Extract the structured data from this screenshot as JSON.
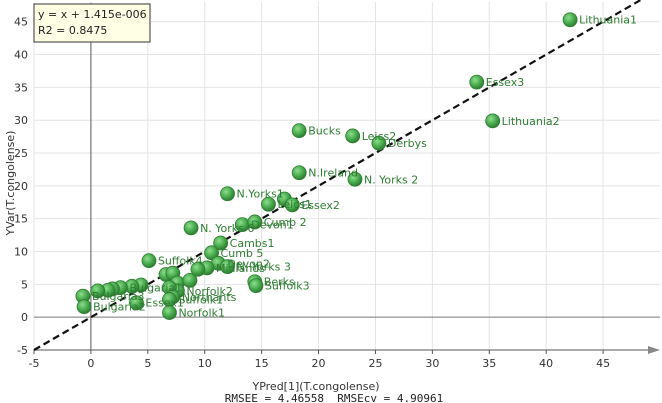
{
  "chart_data": {
    "type": "scatter",
    "xlabel": "YPred[1](T.congolense)",
    "ylabel": "YVar(T.congolense)",
    "xlim": [
      -5,
      50
    ],
    "ylim": [
      -5,
      48
    ],
    "x_ticks": [
      -5,
      0,
      5,
      10,
      15,
      20,
      25,
      30,
      35,
      40,
      45
    ],
    "y_ticks": [
      -5,
      0,
      5,
      10,
      15,
      20,
      25,
      30,
      35,
      40,
      45
    ],
    "grid": true,
    "fit_line": {
      "slope": 1,
      "intercept": 1.415e-06,
      "style": "dashed"
    },
    "equation": {
      "line1": "y = x + 1.415e-006",
      "line2": "R2 = 0.8475"
    },
    "stats_text": "RMSEE = 4.46558  RMSEcv = 4.90961",
    "marker_color": "#4caf50",
    "points": [
      {
        "x": 42.1,
        "y": 45.3,
        "label": "Lithuania1"
      },
      {
        "x": 33.9,
        "y": 35.8,
        "label": "Essex3"
      },
      {
        "x": 35.3,
        "y": 29.9,
        "label": "Lithuania2"
      },
      {
        "x": 18.3,
        "y": 28.4,
        "label": "Bucks"
      },
      {
        "x": 23.0,
        "y": 27.6,
        "label": "Leics2"
      },
      {
        "x": 25.3,
        "y": 26.5,
        "label": "Derbys"
      },
      {
        "x": 18.3,
        "y": 22.0,
        "label": "N.Ireland"
      },
      {
        "x": 23.2,
        "y": 21.0,
        "label": "N. Yorks 2"
      },
      {
        "x": 12.0,
        "y": 18.8,
        "label": "N.Yorks1"
      },
      {
        "x": 15.6,
        "y": 17.2,
        "label": "Leics1"
      },
      {
        "x": 17.0,
        "y": 18.0,
        "label": ""
      },
      {
        "x": 17.7,
        "y": 17.1,
        "label": "Essex2"
      },
      {
        "x": 8.8,
        "y": 13.6,
        "label": "N. Yorks 6"
      },
      {
        "x": 13.3,
        "y": 14.1,
        "label": "Devon1"
      },
      {
        "x": 14.4,
        "y": 14.5,
        "label": "Cumb 2"
      },
      {
        "x": 11.4,
        "y": 11.3,
        "label": "Cambs1"
      },
      {
        "x": 10.6,
        "y": 9.8,
        "label": "Cumb 5"
      },
      {
        "x": 5.1,
        "y": 8.6,
        "label": "Suffolk4"
      },
      {
        "x": 11.2,
        "y": 8.2,
        "label": "Devon2"
      },
      {
        "x": 12.0,
        "y": 7.7,
        "label": "N. Yorks 3"
      },
      {
        "x": 10.2,
        "y": 7.5,
        "label": "Midlands"
      },
      {
        "x": 9.4,
        "y": 7.3,
        "label": ""
      },
      {
        "x": 6.6,
        "y": 6.5,
        "label": ""
      },
      {
        "x": 7.2,
        "y": 6.7,
        "label": ""
      },
      {
        "x": 14.4,
        "y": 5.4,
        "label": "Berks"
      },
      {
        "x": 14.5,
        "y": 4.8,
        "label": "Suffolk3"
      },
      {
        "x": 7.6,
        "y": 5.2,
        "label": ""
      },
      {
        "x": 8.7,
        "y": 5.6,
        "label": ""
      },
      {
        "x": 4.4,
        "y": 4.9,
        "label": ""
      },
      {
        "x": 3.6,
        "y": 4.7,
        "label": ""
      },
      {
        "x": 2.6,
        "y": 4.5,
        "label": "Bulgaria1"
      },
      {
        "x": 1.9,
        "y": 4.3,
        "label": ""
      },
      {
        "x": 1.5,
        "y": 4.1,
        "label": ""
      },
      {
        "x": 7.6,
        "y": 4.0,
        "label": "Norfolk2"
      },
      {
        "x": 6.9,
        "y": 4.5,
        "label": ""
      },
      {
        "x": 7.2,
        "y": 3.1,
        "label": "Northants"
      },
      {
        "x": 6.9,
        "y": 2.7,
        "label": "Suffolk1"
      },
      {
        "x": 4.0,
        "y": 2.2,
        "label": "Essex1"
      },
      {
        "x": -0.7,
        "y": 3.2,
        "label": "Bulgaria3"
      },
      {
        "x": 0.6,
        "y": 4.0,
        "label": ""
      },
      {
        "x": -0.6,
        "y": 1.6,
        "label": "Bulgaria2"
      },
      {
        "x": 6.9,
        "y": 0.7,
        "label": "Norfolk1"
      }
    ]
  }
}
